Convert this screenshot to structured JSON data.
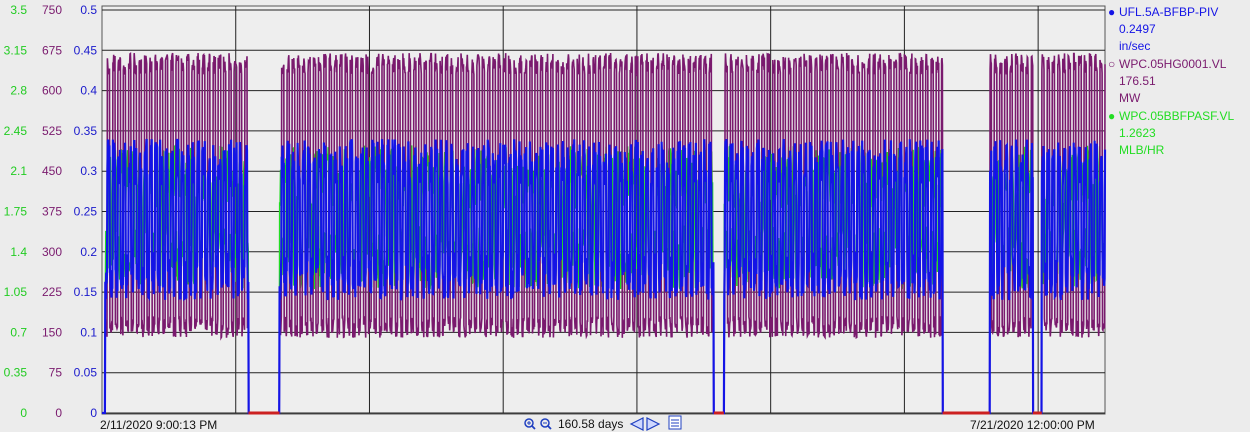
{
  "chart_data": {
    "type": "line",
    "x_range": [
      "2/11/2020 9:00:13 PM",
      "7/21/2020 12:00:00 PM"
    ],
    "x_span_label": "160.58 days",
    "grid": true,
    "legend_placement": "right",
    "axes": [
      {
        "ticks": [
          "0",
          "0.35",
          "0.7",
          "1.05",
          "1.4",
          "1.75",
          "2.1",
          "2.45",
          "2.8",
          "3.15",
          "3.5"
        ],
        "color": "#22cc22"
      },
      {
        "ticks": [
          "0",
          "75",
          "150",
          "225",
          "300",
          "375",
          "450",
          "525",
          "600",
          "675",
          "750"
        ],
        "color": "#7a1a6e"
      },
      {
        "ticks": [
          "0",
          "0.05",
          "0.1",
          "0.15",
          "0.2",
          "0.25",
          "0.3",
          "0.35",
          "0.4",
          "0.45",
          "0.5"
        ],
        "color": "#1a1acc"
      }
    ],
    "series": [
      {
        "name": "UFL.5A-BFBP-PIV",
        "value": "0.2497",
        "unit": "in/sec",
        "color": "#1414e6",
        "marker": "●",
        "axis_range": [
          0,
          0.5
        ]
      },
      {
        "name": "WPC.05HG0001.VL",
        "value": "176.51",
        "unit": "MW",
        "color": "#7a1a6e",
        "marker": "○",
        "axis_range": [
          0,
          750
        ]
      },
      {
        "name": "WPC.05BBFPASF.VL",
        "value": "1.2623",
        "unit": "MLB/HR",
        "color": "#22dd22",
        "marker": "●",
        "axis_range": [
          0,
          3.5
        ]
      }
    ],
    "outage_intervals_fraction": [
      [
        0.146,
        0.177
      ],
      [
        0.61,
        0.62
      ],
      [
        0.838,
        0.885
      ],
      [
        0.928,
        0.937
      ]
    ]
  },
  "footer": {
    "start": "2/11/2020 9:00:13 PM",
    "end": "7/21/2020 12:00:00 PM",
    "zoom_in_icon": "zoom-in-icon",
    "zoom_out_icon": "zoom-out-icon",
    "span": "160.58 days",
    "left_icon": "arrow-left-icon",
    "right_icon": "arrow-right-icon",
    "refresh_icon": "refresh-icon"
  }
}
